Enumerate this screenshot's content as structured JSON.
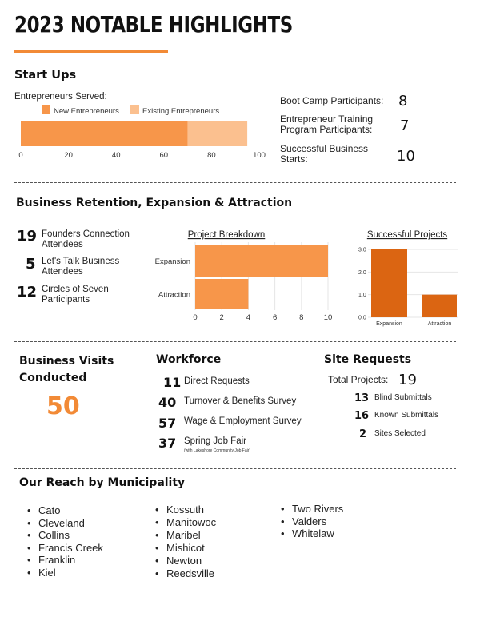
{
  "page": {
    "title": "2023 NOTABLE HIGHLIGHTS"
  },
  "startups": {
    "heading": "Start Ups",
    "served_label": "Entrepreneurs Served:",
    "legend": [
      "New Entrepreneurs",
      "Existing Entrepreneurs"
    ],
    "stats": [
      {
        "label": "Boot Camp Participants:",
        "value": "8"
      },
      {
        "label_line1": "Entrepreneur Training",
        "label_line2": "Program Participants:",
        "value": "7"
      },
      {
        "label_line1": "Successful Business",
        "label_line2": "Starts:",
        "value": "10"
      }
    ]
  },
  "retention": {
    "heading": "Business Retention, Expansion & Attraction",
    "stats": [
      {
        "value": "19",
        "line1": "Founders Connection",
        "line2": "Attendees"
      },
      {
        "value": "5",
        "line1": "Let's Talk Business",
        "line2": "Attendees"
      },
      {
        "value": "12",
        "line1": "Circles of Seven",
        "line2": "Participants"
      }
    ]
  },
  "visits": {
    "heading_line1": "Business Visits",
    "heading_line2": "Conducted",
    "value": "50"
  },
  "workforce": {
    "heading": "Workforce",
    "items": [
      {
        "value": "11",
        "label": "Direct Requests"
      },
      {
        "value": "40",
        "label": "Turnover & Benefits Survey"
      },
      {
        "value": "57",
        "label": "Wage & Employment Survey"
      },
      {
        "value": "37",
        "label": "Spring Job Fair",
        "note": "(with Lakeshore Community Job Fair)"
      }
    ]
  },
  "site_requests": {
    "heading": "Site Requests",
    "total_label": "Total Projects:",
    "total_value": "19",
    "items": [
      {
        "value": "13",
        "label": "Blind Submittals"
      },
      {
        "value": "16",
        "label": "Known Submittals"
      },
      {
        "value": "2",
        "label": "Sites Selected"
      }
    ]
  },
  "reach": {
    "heading": "Our Reach by Municipality",
    "columns": [
      [
        "Cato",
        "Cleveland",
        "Collins",
        "Francis Creek",
        "Franklin",
        "Kiel"
      ],
      [
        "Kossuth",
        "Manitowoc",
        "Maribel",
        "Mishicot",
        "Newton",
        "Reedsville"
      ],
      [
        "Two Rivers",
        "Valders",
        "Whitelaw"
      ]
    ]
  },
  "colors": {
    "accent": "#f28a36",
    "bar_new": "#f7964a",
    "bar_existing": "#fbc08f",
    "bar_breakdown": "#f7964a",
    "bar_success": "#db6512",
    "gridline": "#e6e6e6"
  },
  "chart_data": [
    {
      "id": "entrepreneurs",
      "type": "bar",
      "orientation": "horizontal",
      "stacked": true,
      "categories": [
        ""
      ],
      "series": [
        {
          "name": "New Entrepreneurs",
          "values": [
            70
          ]
        },
        {
          "name": "Existing Entrepreneurs",
          "values": [
            25
          ]
        }
      ],
      "xlim": [
        0,
        100
      ],
      "xticks": [
        0,
        20,
        40,
        60,
        80,
        100
      ],
      "legend": "top"
    },
    {
      "id": "project_breakdown",
      "type": "bar",
      "orientation": "horizontal",
      "title": "Project Breakdown",
      "categories": [
        "Expansion",
        "Attraction"
      ],
      "values": [
        10,
        4
      ],
      "xlim": [
        0,
        10
      ],
      "xticks": [
        0,
        2,
        4,
        6,
        8,
        10
      ],
      "grid": true
    },
    {
      "id": "successful_projects",
      "type": "bar",
      "orientation": "vertical",
      "title": "Successful Projects",
      "categories": [
        "Expansion",
        "Attraction"
      ],
      "values": [
        3,
        1
      ],
      "ylim": [
        0,
        3
      ],
      "yticks": [
        "0.0",
        "1.0",
        "2.0",
        "3.0"
      ],
      "grid": true
    }
  ]
}
